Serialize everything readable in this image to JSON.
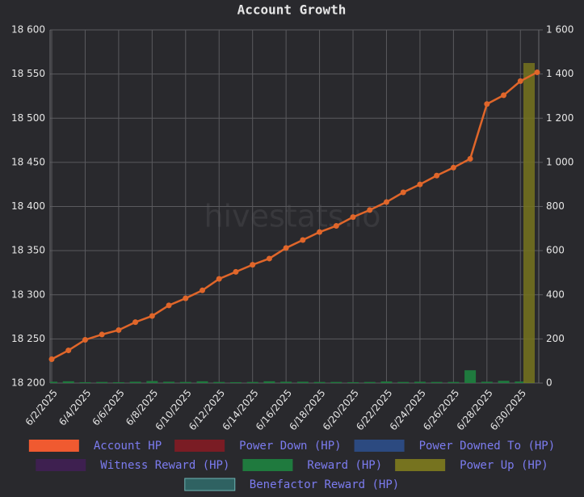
{
  "chart_data": {
    "type": "bar-line",
    "title": "Account Growth",
    "watermark": "hivestats.io",
    "categories": [
      "6/2/2025",
      null,
      "6/4/2025",
      null,
      "6/6/2025",
      null,
      "6/8/2025",
      null,
      "6/10/2025",
      null,
      "6/12/2025",
      null,
      "6/14/2025",
      null,
      "6/16/2025",
      null,
      "6/18/2025",
      null,
      "6/20/2025",
      null,
      "6/22/2025",
      null,
      "6/24/2025",
      null,
      "6/26/2025",
      null,
      "6/28/2025",
      null,
      "6/30/2025",
      null
    ],
    "ylim": [
      18200,
      18600
    ],
    "yticks": [
      {
        "value": 18200,
        "label": "18 200"
      },
      {
        "value": 18250,
        "label": "18 250"
      },
      {
        "value": 18300,
        "label": "18 300"
      },
      {
        "value": 18350,
        "label": "18 350"
      },
      {
        "value": 18400,
        "label": "18 400"
      },
      {
        "value": 18450,
        "label": "18 450"
      },
      {
        "value": 18500,
        "label": "18 500"
      },
      {
        "value": 18550,
        "label": "18 550"
      },
      {
        "value": 18600,
        "label": "18 600"
      }
    ],
    "y2lim": [
      0,
      1600
    ],
    "y2ticks": [
      0,
      200,
      400,
      600,
      800,
      {
        "value": 1000,
        "label": "1 000"
      },
      {
        "value": 1200,
        "label": "1 200"
      },
      {
        "value": 1400,
        "label": "1 400"
      },
      {
        "value": 1600,
        "label": "1 600"
      }
    ],
    "grid": true,
    "series": [
      {
        "name": "Account HP",
        "type": "line",
        "color": "#f05a30",
        "line_color": "#e0662a",
        "values": [
          18227,
          18237,
          18249,
          18255,
          18260,
          18269,
          18276,
          18288,
          18296,
          18305,
          18318,
          18326,
          18334,
          18341,
          18353,
          18362,
          18371,
          18378,
          18388,
          18396,
          18405,
          18416,
          18425,
          18435,
          18444,
          18454,
          18516,
          18526,
          18542,
          18552
        ]
      },
      {
        "name": "Power Down (HP)",
        "type": "bar",
        "axis": "y2",
        "color": "#7a1c24",
        "values": [
          null,
          null,
          null,
          null,
          null,
          null,
          null,
          null,
          null,
          null,
          null,
          null,
          null,
          null,
          null,
          null,
          null,
          null,
          null,
          null,
          null,
          null,
          null,
          null,
          null,
          null,
          null,
          null,
          null,
          null
        ]
      },
      {
        "name": "Power Downed To (HP)",
        "type": "bar",
        "axis": "y2",
        "color": "#2c4a80",
        "values": [
          null,
          null,
          null,
          null,
          null,
          null,
          null,
          null,
          null,
          null,
          null,
          null,
          null,
          null,
          null,
          null,
          null,
          null,
          null,
          null,
          null,
          null,
          null,
          null,
          null,
          null,
          null,
          null,
          null,
          null
        ]
      },
      {
        "name": "Witness Reward (HP)",
        "type": "bar",
        "axis": "y2",
        "color": "#3e2050",
        "values": [
          null,
          null,
          null,
          null,
          null,
          null,
          null,
          null,
          null,
          null,
          null,
          null,
          null,
          null,
          null,
          null,
          null,
          null,
          null,
          null,
          null,
          null,
          null,
          null,
          null,
          null,
          null,
          null,
          null,
          null
        ]
      },
      {
        "name": "Reward (HP)",
        "type": "bar",
        "axis": "y2",
        "color": "#1f7a3e",
        "values": [
          6,
          8,
          4,
          5,
          4,
          6,
          9,
          6,
          5,
          8,
          5,
          4,
          5,
          8,
          6,
          6,
          5,
          5,
          4,
          5,
          7,
          5,
          6,
          5,
          5,
          58,
          6,
          10,
          7,
          5
        ]
      },
      {
        "name": "Power Up (HP)",
        "type": "bar",
        "axis": "y2",
        "color": "#76731f",
        "values": [
          null,
          null,
          null,
          null,
          null,
          null,
          null,
          null,
          null,
          null,
          null,
          null,
          null,
          null,
          null,
          null,
          null,
          null,
          null,
          null,
          null,
          null,
          null,
          null,
          null,
          null,
          null,
          null,
          null,
          1450
        ]
      },
      {
        "name": "Benefactor Reward (HP)",
        "type": "bar",
        "axis": "y2",
        "color": "#2f6262",
        "values": [
          null,
          null,
          null,
          null,
          null,
          null,
          null,
          null,
          null,
          null,
          null,
          null,
          null,
          null,
          null,
          null,
          null,
          null,
          null,
          null,
          null,
          null,
          null,
          null,
          null,
          null,
          null,
          null,
          null,
          null
        ]
      }
    ]
  }
}
